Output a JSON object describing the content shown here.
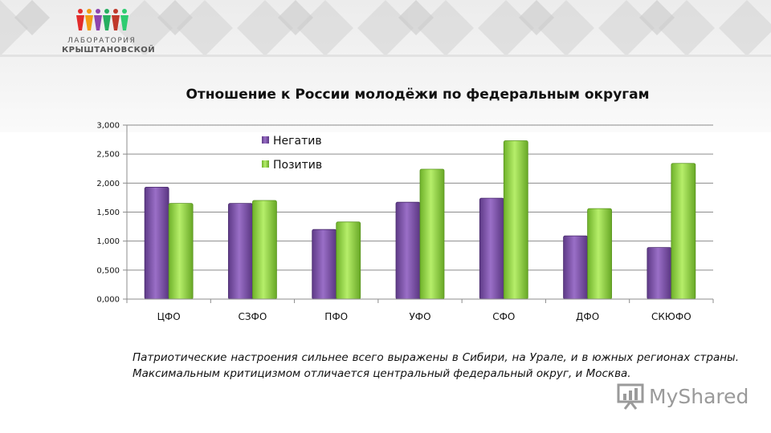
{
  "branding": {
    "line1": "ЛАБОРАТОРИЯ",
    "line2": "КРЫШТАНОВСКОЙ",
    "logo_colors": [
      "#e22b2b",
      "#f39c12",
      "#8e44ad",
      "#27ae60",
      "#c0392b",
      "#2ecc71"
    ]
  },
  "caption": "Патриотические настроения сильнее всего выражены в Сибири, на Урале, и в южных регионах страны. Максимальным критицизмом отличается центральный федеральный округ, и Москва.",
  "watermark": {
    "text": "MyShared",
    "icon": "presentation-board-icon"
  },
  "chart_data": {
    "type": "bar",
    "title": "Отношение к России молодёжи по федеральным округам",
    "categories": [
      "ЦФО",
      "СЗФО",
      "ПФО",
      "УФО",
      "СФО",
      "ДФО",
      "СКЮФО"
    ],
    "series": [
      {
        "name": "Негатив",
        "color": "#7b4fa6",
        "values": [
          1.93,
          1.65,
          1.2,
          1.67,
          1.74,
          1.09,
          0.89
        ]
      },
      {
        "name": "Позитив",
        "color": "#8bd13a",
        "values": [
          1.65,
          1.7,
          1.33,
          2.24,
          2.73,
          1.56,
          2.34
        ]
      }
    ],
    "ylim": [
      0,
      3
    ],
    "yticks": [
      "0,000",
      "0,500",
      "1,000",
      "1,500",
      "2,000",
      "2,500",
      "3,000"
    ],
    "grid": true,
    "legend": "top-center",
    "xlabel": "",
    "ylabel": ""
  }
}
